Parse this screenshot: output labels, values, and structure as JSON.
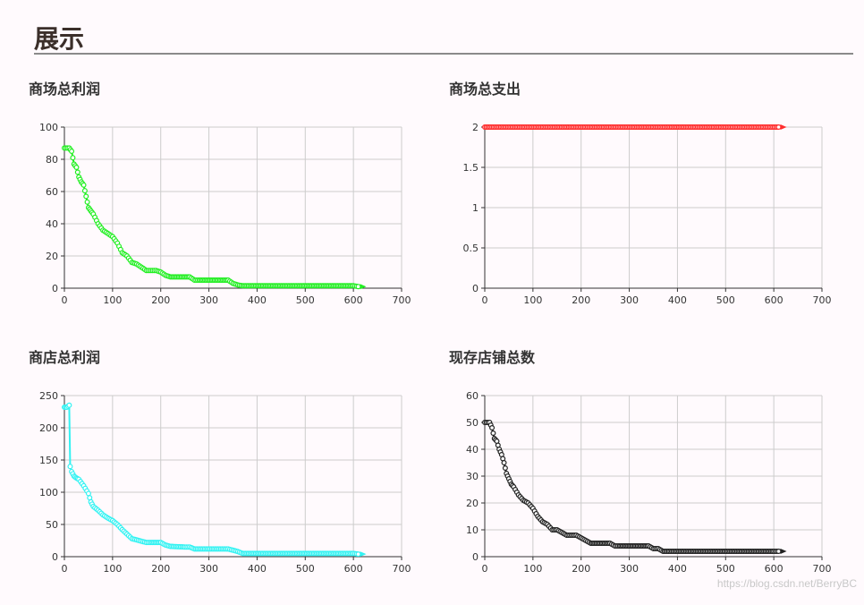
{
  "page": {
    "title": "展示",
    "watermark": "https://blog.csdn.net/BerryBC"
  },
  "chart_data": [
    {
      "id": "mall-profit",
      "type": "line",
      "title": "商场总利润",
      "color": "#22ee22",
      "xlim": [
        0,
        700
      ],
      "ylim": [
        0,
        100
      ],
      "xticks": [
        0,
        100,
        200,
        300,
        400,
        500,
        600,
        700
      ],
      "yticks": [
        0,
        20,
        40,
        60,
        80,
        100
      ],
      "grid": true,
      "series": [
        {
          "x": [
            0,
            10,
            15,
            20,
            25,
            30,
            35,
            40,
            45,
            50,
            55,
            60,
            70,
            80,
            90,
            100,
            110,
            120,
            130,
            140,
            150,
            160,
            170,
            180,
            190,
            200,
            210,
            220,
            240,
            260,
            270,
            280,
            300,
            320,
            340,
            350,
            360,
            370,
            400,
            450,
            500,
            550,
            600,
            610
          ],
          "y": [
            87,
            87,
            85,
            77,
            75,
            69,
            66,
            64,
            57,
            50,
            48,
            46,
            40,
            36,
            34,
            32,
            28,
            22,
            20,
            16,
            15,
            13,
            11,
            11,
            11,
            10,
            8,
            7,
            7,
            7,
            5,
            5,
            5,
            5,
            5,
            3,
            2,
            1.5,
            1.5,
            1.5,
            1.5,
            1.5,
            1.5,
            1
          ]
        }
      ]
    },
    {
      "id": "mall-expense",
      "type": "line",
      "title": "商场总支出",
      "color": "#ff2d2d",
      "xlim": [
        0,
        700
      ],
      "ylim": [
        0,
        2
      ],
      "xticks": [
        0,
        100,
        200,
        300,
        400,
        500,
        600,
        700
      ],
      "yticks": [
        0,
        0.5,
        1,
        1.5,
        2
      ],
      "grid": true,
      "series": [
        {
          "x": [
            0,
            610
          ],
          "y": [
            2,
            2
          ]
        }
      ]
    },
    {
      "id": "shop-profit",
      "type": "line",
      "title": "商店总利润",
      "color": "#33f2f2",
      "xlim": [
        0,
        700
      ],
      "ylim": [
        0,
        250
      ],
      "xticks": [
        0,
        100,
        200,
        300,
        400,
        500,
        600,
        700
      ],
      "yticks": [
        0,
        50,
        100,
        150,
        200,
        250
      ],
      "grid": true,
      "series": [
        {
          "x": [
            0,
            5,
            10,
            12,
            15,
            20,
            25,
            30,
            40,
            50,
            55,
            60,
            70,
            80,
            90,
            100,
            110,
            120,
            130,
            140,
            150,
            160,
            170,
            180,
            200,
            210,
            220,
            250,
            260,
            270,
            300,
            340,
            350,
            360,
            370,
            400,
            450,
            500,
            550,
            600,
            610
          ],
          "y": [
            232,
            232,
            235,
            140,
            132,
            125,
            122,
            120,
            110,
            98,
            85,
            78,
            72,
            65,
            60,
            56,
            50,
            42,
            35,
            28,
            26,
            24,
            22,
            22,
            22,
            18,
            16,
            15,
            15,
            12,
            12,
            12,
            10,
            8,
            5,
            5,
            5,
            5,
            5,
            5,
            4
          ]
        }
      ]
    },
    {
      "id": "shop-count",
      "type": "line",
      "title": "现存店铺总数",
      "color": "#222222",
      "xlim": [
        0,
        700
      ],
      "ylim": [
        0,
        60
      ],
      "xticks": [
        0,
        100,
        200,
        300,
        400,
        500,
        600,
        700
      ],
      "yticks": [
        0,
        10,
        20,
        30,
        40,
        50,
        60
      ],
      "grid": true,
      "series": [
        {
          "x": [
            0,
            10,
            15,
            20,
            25,
            30,
            35,
            40,
            45,
            50,
            55,
            60,
            70,
            80,
            90,
            100,
            110,
            120,
            130,
            140,
            150,
            160,
            170,
            180,
            190,
            200,
            210,
            220,
            240,
            260,
            270,
            280,
            300,
            320,
            340,
            350,
            360,
            370,
            400,
            450,
            500,
            550,
            600,
            610
          ],
          "y": [
            50,
            50,
            48,
            44,
            43,
            40,
            38,
            35,
            31,
            29,
            27,
            26,
            23,
            21,
            20,
            18,
            15,
            13,
            12,
            10,
            10,
            9,
            8,
            8,
            8,
            7,
            6,
            5,
            5,
            5,
            4,
            4,
            4,
            4,
            4,
            3,
            3,
            2,
            2,
            2,
            2,
            2,
            2,
            2
          ]
        }
      ]
    }
  ]
}
